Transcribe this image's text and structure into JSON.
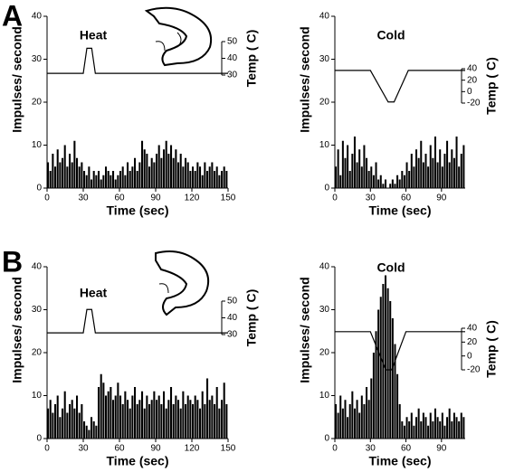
{
  "chart_data": [
    {
      "type": "bar",
      "panel_label": "A",
      "annotation": "Heat",
      "xlabel": "Time (sec)",
      "ylabel": "Impulses/ second",
      "y2label": "Temp ( C)",
      "color": "#000000",
      "xlim": [
        0,
        150
      ],
      "xticks": [
        0,
        30,
        60,
        90,
        120,
        150
      ],
      "ylim": [
        0,
        40
      ],
      "yticks": [
        0,
        10,
        20,
        30,
        40
      ],
      "y2lim": [
        30,
        50
      ],
      "y2ticks": [
        30,
        40,
        50
      ],
      "x": [
        0,
        2,
        4,
        6,
        8,
        10,
        12,
        14,
        16,
        18,
        20,
        22,
        24,
        26,
        28,
        30,
        32,
        34,
        36,
        38,
        40,
        42,
        44,
        46,
        48,
        50,
        52,
        54,
        56,
        58,
        60,
        62,
        64,
        66,
        68,
        70,
        72,
        74,
        76,
        78,
        80,
        82,
        84,
        86,
        88,
        90,
        92,
        94,
        96,
        98,
        100,
        102,
        104,
        106,
        108,
        110,
        112,
        114,
        116,
        118,
        120,
        122,
        124,
        126,
        128,
        130,
        132,
        134,
        136,
        138,
        140,
        142,
        144,
        146,
        148
      ],
      "values": [
        6,
        4,
        8,
        5,
        9,
        6,
        7,
        10,
        5,
        8,
        6,
        11,
        7,
        5,
        6,
        4,
        3,
        5,
        2,
        4,
        3,
        4,
        2,
        3,
        5,
        4,
        3,
        4,
        2,
        3,
        4,
        5,
        3,
        6,
        4,
        5,
        7,
        4,
        6,
        11,
        9,
        8,
        5,
        7,
        6,
        8,
        10,
        7,
        9,
        11,
        8,
        10,
        7,
        9,
        6,
        8,
        5,
        7,
        6,
        4,
        5,
        4,
        6,
        5,
        3,
        6,
        4,
        5,
        6,
        4,
        5,
        3,
        4,
        5,
        4
      ],
      "temp_x": [
        0,
        30,
        33,
        37,
        40,
        150
      ],
      "temp_values": [
        31,
        31,
        46,
        46,
        31,
        31
      ]
    },
    {
      "type": "bar",
      "annotation": "Cold",
      "xlabel": "Time (sec)",
      "ylabel": "Impulses/ second",
      "y2label": "Temp ( C)",
      "color": "#000000",
      "xlim": [
        0,
        110
      ],
      "xticks": [
        0,
        30,
        60,
        90
      ],
      "ylim": [
        0,
        40
      ],
      "yticks": [
        0,
        10,
        20,
        30,
        40
      ],
      "y2lim": [
        -20,
        40
      ],
      "y2ticks": [
        -20,
        0,
        20,
        40
      ],
      "x": [
        0,
        2,
        4,
        6,
        8,
        10,
        12,
        14,
        16,
        18,
        20,
        22,
        24,
        26,
        28,
        30,
        32,
        34,
        36,
        38,
        40,
        42,
        44,
        46,
        48,
        50,
        52,
        54,
        56,
        58,
        60,
        62,
        64,
        66,
        68,
        70,
        72,
        74,
        76,
        78,
        80,
        82,
        84,
        86,
        88,
        90,
        92,
        94,
        96,
        98,
        100,
        102,
        104,
        106,
        108
      ],
      "values": [
        5,
        9,
        3,
        11,
        7,
        10,
        4,
        8,
        12,
        6,
        9,
        5,
        10,
        7,
        4,
        5,
        3,
        6,
        2,
        3,
        1,
        2,
        0,
        1,
        2,
        1,
        3,
        2,
        4,
        3,
        6,
        4,
        8,
        5,
        9,
        7,
        11,
        6,
        8,
        5,
        10,
        7,
        12,
        6,
        9,
        5,
        8,
        11,
        6,
        9,
        7,
        12,
        5,
        8,
        10
      ],
      "temp_x": [
        0,
        30,
        45,
        50,
        62,
        110
      ],
      "temp_values": [
        37,
        37,
        -18,
        -18,
        37,
        37
      ]
    },
    {
      "type": "bar",
      "panel_label": "B",
      "annotation": "Heat",
      "xlabel": "Time (sec)",
      "ylabel": "Impulses/ second",
      "y2label": "Temp ( C)",
      "color": "#000000",
      "xlim": [
        0,
        150
      ],
      "xticks": [
        0,
        30,
        60,
        90,
        120,
        150
      ],
      "ylim": [
        0,
        40
      ],
      "yticks": [
        0,
        10,
        20,
        30,
        40
      ],
      "y2lim": [
        30,
        50
      ],
      "y2ticks": [
        30,
        40,
        50
      ],
      "x": [
        0,
        2,
        4,
        6,
        8,
        10,
        12,
        14,
        16,
        18,
        20,
        22,
        24,
        26,
        28,
        30,
        32,
        34,
        36,
        38,
        40,
        42,
        44,
        46,
        48,
        50,
        52,
        54,
        56,
        58,
        60,
        62,
        64,
        66,
        68,
        70,
        72,
        74,
        76,
        78,
        80,
        82,
        84,
        86,
        88,
        90,
        92,
        94,
        96,
        98,
        100,
        102,
        104,
        106,
        108,
        110,
        112,
        114,
        116,
        118,
        120,
        122,
        124,
        126,
        128,
        130,
        132,
        134,
        136,
        138,
        140,
        142,
        144,
        146,
        148
      ],
      "values": [
        7,
        9,
        6,
        8,
        10,
        5,
        7,
        11,
        6,
        8,
        9,
        7,
        10,
        6,
        8,
        4,
        3,
        2,
        5,
        4,
        3,
        12,
        15,
        13,
        10,
        11,
        12,
        9,
        10,
        13,
        10,
        8,
        11,
        9,
        7,
        10,
        12,
        8,
        9,
        11,
        7,
        10,
        8,
        9,
        11,
        9,
        10,
        8,
        11,
        7,
        9,
        12,
        8,
        10,
        9,
        7,
        11,
        8,
        10,
        9,
        8,
        10,
        9,
        7,
        11,
        8,
        14,
        9,
        10,
        8,
        12,
        7,
        9,
        13,
        8
      ],
      "temp_x": [
        0,
        30,
        33,
        37,
        40,
        150
      ],
      "temp_values": [
        31,
        31,
        45,
        45,
        31,
        31
      ]
    },
    {
      "type": "bar",
      "annotation": "Cold",
      "xlabel": "Time (sec)",
      "ylabel": "Impulses/ second",
      "y2label": "Temp ( C)",
      "color": "#000000",
      "xlim": [
        0,
        110
      ],
      "xticks": [
        0,
        30,
        60,
        90
      ],
      "ylim": [
        0,
        40
      ],
      "yticks": [
        0,
        10,
        20,
        30,
        40
      ],
      "y2lim": [
        -20,
        40
      ],
      "y2ticks": [
        -20,
        0,
        20,
        40
      ],
      "x": [
        0,
        2,
        4,
        6,
        8,
        10,
        12,
        14,
        16,
        18,
        20,
        22,
        24,
        26,
        28,
        30,
        32,
        34,
        36,
        38,
        40,
        42,
        44,
        46,
        48,
        50,
        52,
        54,
        56,
        58,
        60,
        62,
        64,
        66,
        68,
        70,
        72,
        74,
        76,
        78,
        80,
        82,
        84,
        86,
        88,
        90,
        92,
        94,
        96,
        98,
        100,
        102,
        104,
        106,
        108
      ],
      "values": [
        8,
        6,
        10,
        7,
        9,
        5,
        8,
        11,
        7,
        9,
        6,
        10,
        8,
        12,
        9,
        14,
        20,
        25,
        30,
        33,
        36,
        38,
        35,
        32,
        28,
        22,
        15,
        8,
        4,
        3,
        5,
        4,
        6,
        3,
        5,
        7,
        4,
        6,
        5,
        3,
        6,
        4,
        7,
        5,
        4,
        6,
        3,
        5,
        7,
        4,
        6,
        5,
        4,
        6,
        5
      ],
      "temp_x": [
        0,
        30,
        43,
        48,
        60,
        110
      ],
      "temp_values": [
        35,
        35,
        -20,
        -20,
        35,
        35
      ]
    }
  ]
}
